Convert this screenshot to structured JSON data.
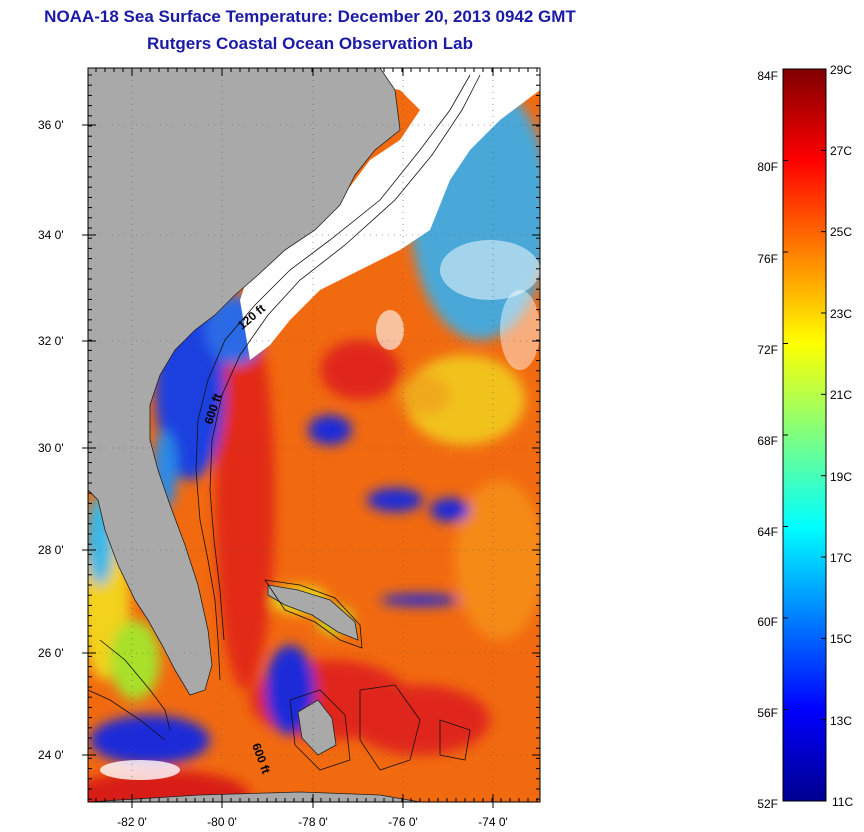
{
  "header": {
    "title": "NOAA-18 Sea Surface Temperature:  December 20, 2013 0942 GMT",
    "subtitle": "Rutgers Coastal Ocean Observation Lab"
  },
  "map": {
    "lat_ticks": [
      "24 0'",
      "26 0'",
      "28 0'",
      "30 0'",
      "32 0'",
      "34 0'",
      "36 0'"
    ],
    "lon_ticks": [
      "-82 0'",
      "-80 0'",
      "-78 0'",
      "-76 0'",
      "-74 0'"
    ],
    "contour_labels": [
      "120 ft",
      "600 ft",
      "600 ft"
    ],
    "colors": {
      "land": "#a9a9a9",
      "cloud": "#ffffff",
      "warm": "#f26a10",
      "cold": "#1a2bd8"
    }
  },
  "colorbar": {
    "fahrenheit": [
      "84F",
      "80F",
      "76F",
      "72F",
      "68F",
      "64F",
      "60F",
      "56F",
      "52F"
    ],
    "celsius": [
      "29C",
      "27C",
      "25C",
      "23C",
      "21C",
      "19C",
      "17C",
      "15C",
      "13C",
      "11C"
    ]
  }
}
